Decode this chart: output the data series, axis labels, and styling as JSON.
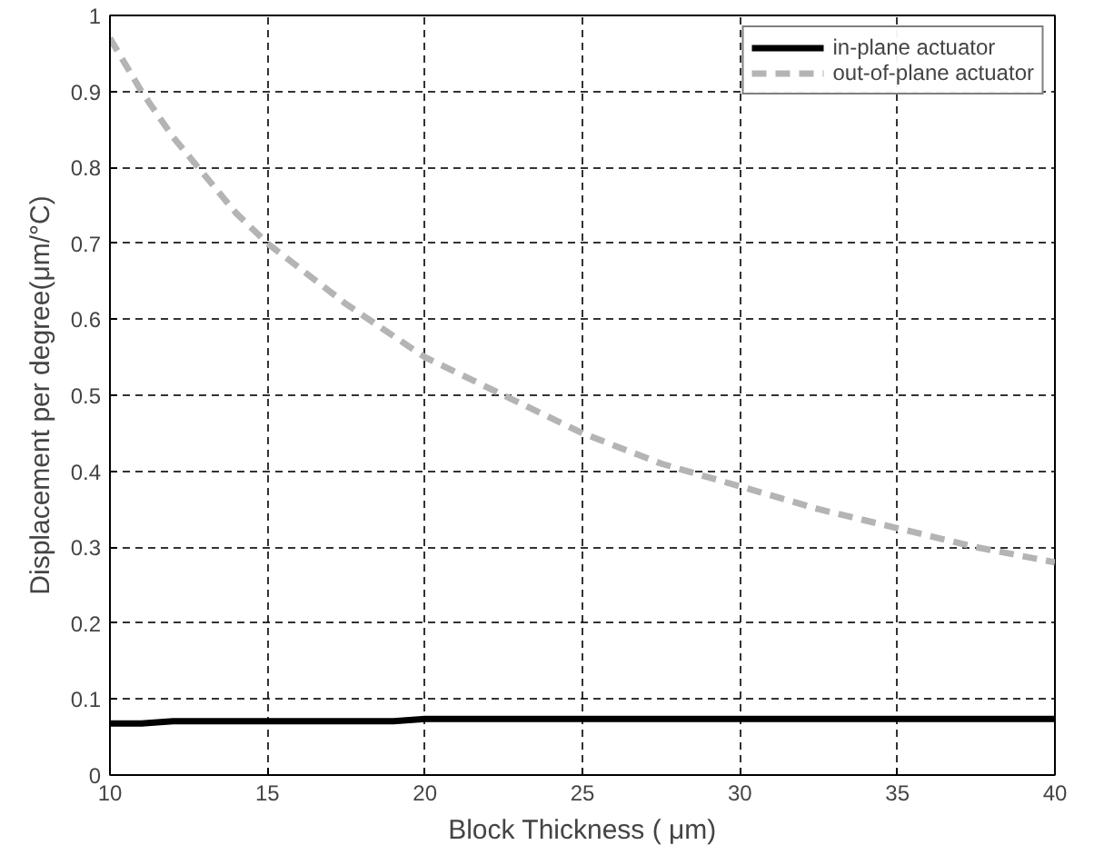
{
  "chart_data": {
    "type": "line",
    "xlabel": "Block Thickness ( μm)",
    "ylabel": "Displacement per degree(μm/°C)",
    "xlim": [
      10,
      40
    ],
    "ylim": [
      0,
      1
    ],
    "xticks": [
      10,
      15,
      20,
      25,
      30,
      35,
      40
    ],
    "yticks": [
      0,
      0.1,
      0.2,
      0.3,
      0.4,
      0.5,
      0.6,
      0.7,
      0.8,
      0.9,
      1
    ],
    "grid": true,
    "legend": "top right",
    "marker": "none",
    "series": [
      {
        "name": "in-plane actuator",
        "color": "#000000",
        "line_style": "solid",
        "x": [
          10,
          11,
          12,
          19,
          20,
          40
        ],
        "values": [
          0.068,
          0.068,
          0.071,
          0.071,
          0.074,
          0.074
        ]
      },
      {
        "name": "out-of-plane actuator",
        "color": "#b4b4b4",
        "line_style": "dashed",
        "x": [
          10,
          11,
          12,
          13,
          14,
          15,
          17.5,
          20,
          22.5,
          25,
          27.5,
          30,
          32.5,
          35,
          37.5,
          40
        ],
        "values": [
          0.97,
          0.9,
          0.84,
          0.79,
          0.74,
          0.7,
          0.62,
          0.55,
          0.5,
          0.45,
          0.41,
          0.38,
          0.35,
          0.325,
          0.3,
          0.28
        ]
      }
    ]
  }
}
